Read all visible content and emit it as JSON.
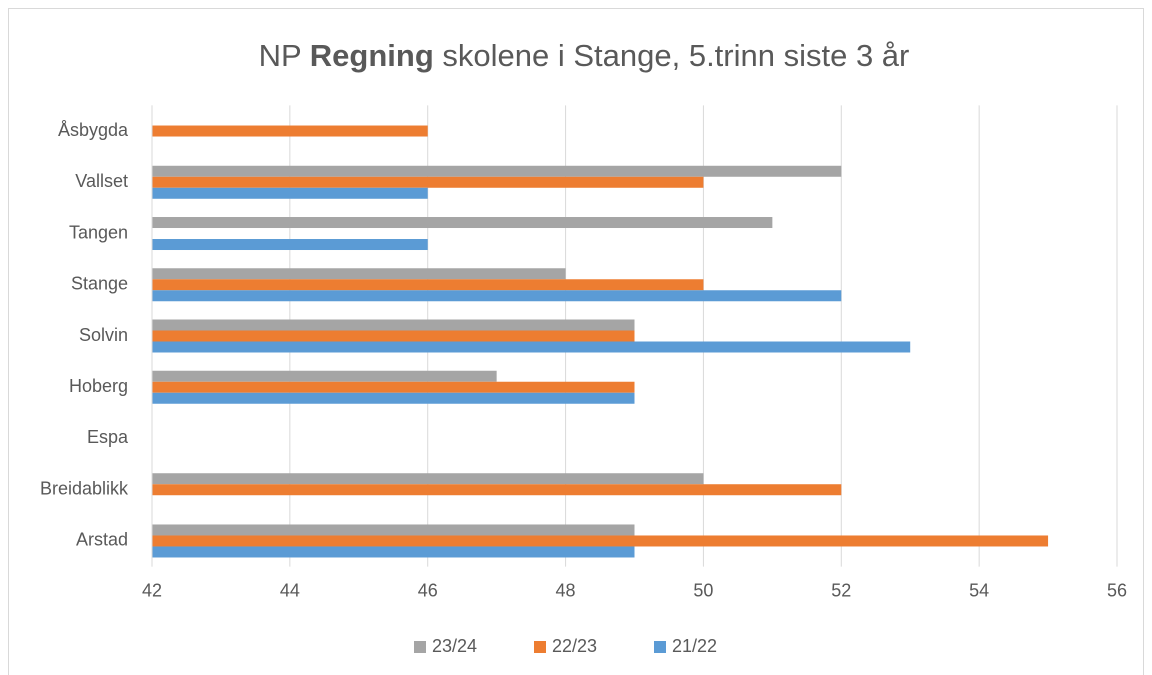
{
  "chart_data": {
    "type": "barh",
    "title": [
      "NP",
      "Regning",
      "skolene i Stange, 5.trinn siste 3 år"
    ],
    "categories": [
      "Arstad",
      "Breidablikk",
      "Espa",
      "Hoberg",
      "Solvin",
      "Stange",
      "Tangen",
      "Vallset",
      "Åsbygda"
    ],
    "series": [
      {
        "name": "23/24",
        "color": "#a5a5a5",
        "values": [
          49,
          50,
          null,
          47,
          49,
          48,
          51,
          52,
          null
        ]
      },
      {
        "name": "22/23",
        "color": "#ed7d31",
        "values": [
          55,
          52,
          null,
          49,
          49,
          50,
          null,
          50,
          46
        ]
      },
      {
        "name": "21/22",
        "color": "#5b9bd5",
        "values": [
          49,
          null,
          null,
          49,
          53,
          52,
          46,
          46,
          null
        ]
      }
    ],
    "xlim": [
      42,
      56
    ],
    "xticks": [
      42,
      44,
      46,
      48,
      50,
      52,
      54,
      56
    ],
    "grid": true,
    "legend": "bottom"
  }
}
